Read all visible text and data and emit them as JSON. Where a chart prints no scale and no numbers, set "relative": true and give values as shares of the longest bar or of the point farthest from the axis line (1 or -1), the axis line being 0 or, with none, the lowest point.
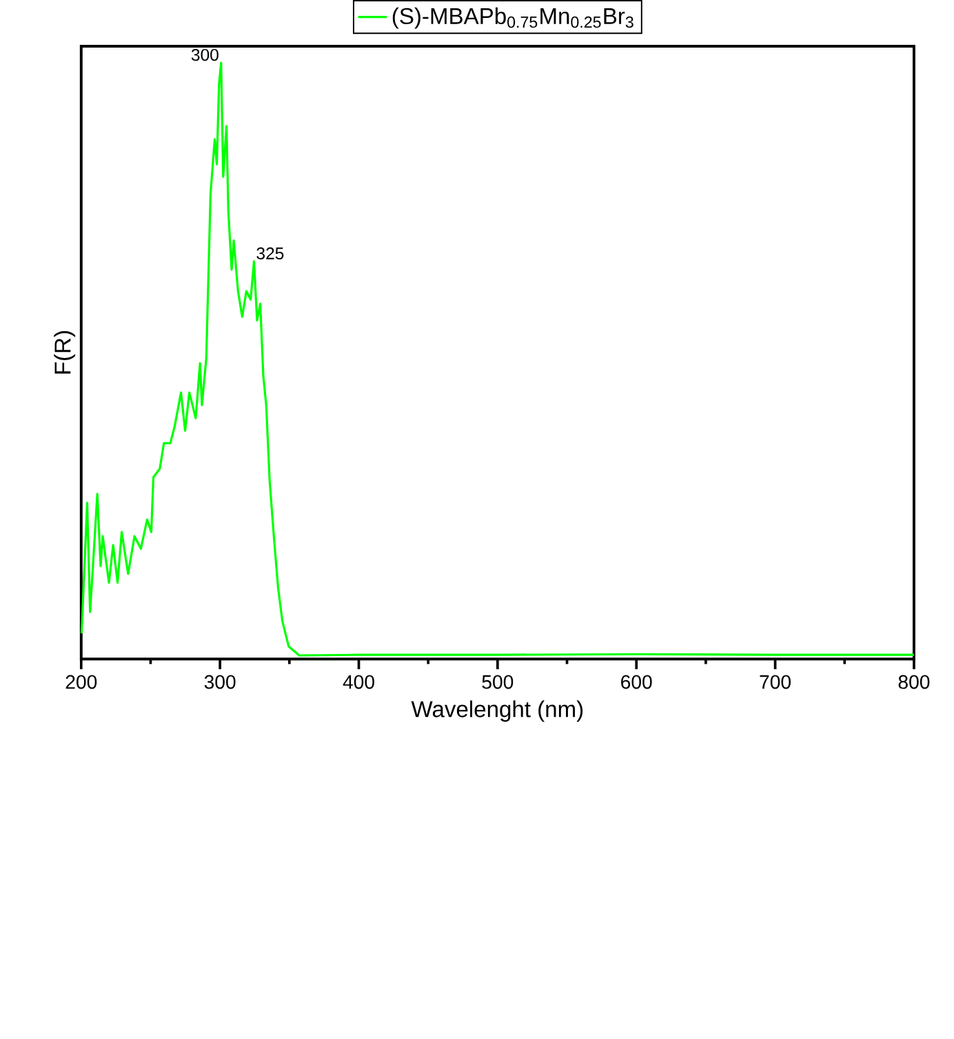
{
  "chart_data": {
    "type": "line",
    "relative": true,
    "xlabel": "Wavelenght (nm)",
    "ylabel": "F(R)",
    "xlim": [
      200,
      800
    ],
    "xticks": [
      200,
      300,
      400,
      500,
      600,
      700,
      800
    ],
    "legend": "top",
    "annotations": [
      {
        "text": "300",
        "x": 300.8,
        "y": 1.0
      },
      {
        "text": "325",
        "x": 324.5,
        "y": 0.667
      }
    ],
    "series": [
      {
        "name": "(S)-MBAPb$_{0.75}$Mn$_{0.25}$Br$_{3}$",
        "color": "#00ff00",
        "x": [
          200.3,
          202,
          204.3,
          206.4,
          209.4,
          211.6,
          214,
          215.5,
          220,
          223,
          226.2,
          229.2,
          233.8,
          238.4,
          243,
          247.5,
          250.5,
          252,
          256.6,
          259.6,
          264.2,
          267.3,
          271.9,
          274.9,
          277.9,
          282.5,
          285.6,
          287,
          290.1,
          293.2,
          296.2,
          297.7,
          299.3,
          300.8,
          302.3,
          304.7,
          306,
          308.4,
          309.9,
          313,
          316,
          319,
          322.1,
          324.5,
          326.7,
          329,
          331.2,
          333.3,
          335.8,
          338.8,
          341.8,
          344.9,
          349.5,
          357.1,
          400,
          500,
          600,
          700,
          800
        ],
        "values": [
          0.043,
          0.135,
          0.262,
          0.079,
          0.191,
          0.277,
          0.156,
          0.206,
          0.128,
          0.191,
          0.128,
          0.213,
          0.143,
          0.206,
          0.185,
          0.234,
          0.213,
          0.305,
          0.319,
          0.362,
          0.362,
          0.39,
          0.447,
          0.383,
          0.447,
          0.404,
          0.496,
          0.426,
          0.504,
          0.781,
          0.872,
          0.83,
          0.964,
          1.0,
          0.809,
          0.894,
          0.752,
          0.653,
          0.702,
          0.617,
          0.574,
          0.617,
          0.603,
          0.667,
          0.568,
          0.596,
          0.475,
          0.426,
          0.298,
          0.206,
          0.121,
          0.064,
          0.021,
          0.006,
          0.007,
          0.007,
          0.008,
          0.007,
          0.007
        ]
      }
    ]
  }
}
